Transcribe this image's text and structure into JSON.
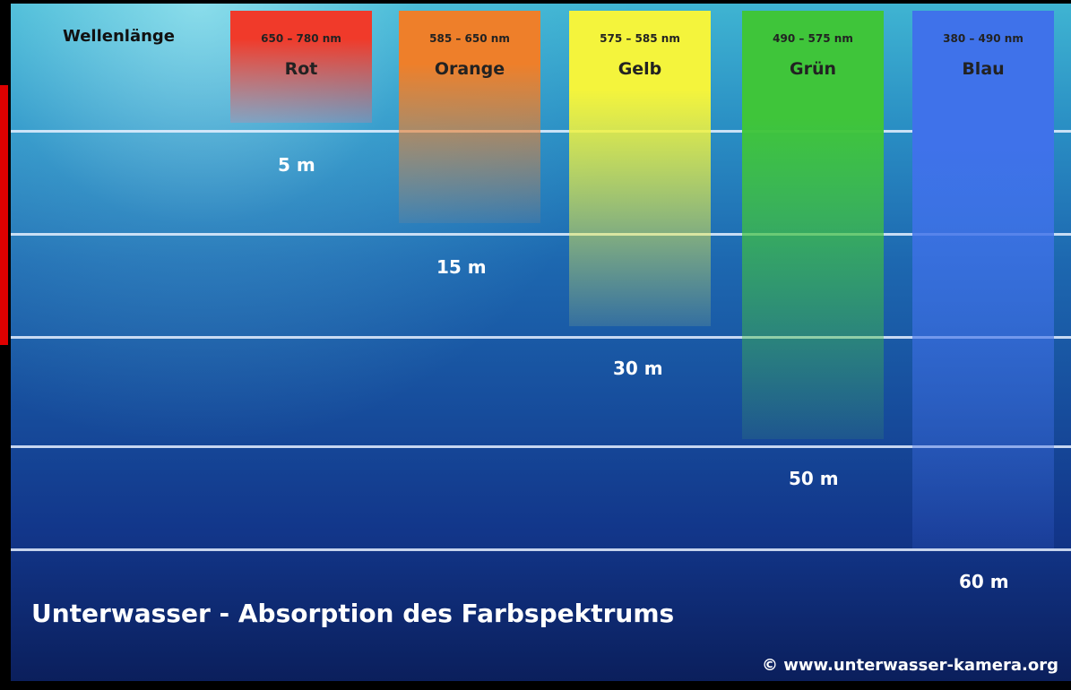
{
  "header": {
    "label": "Wellenlänge"
  },
  "columns": [
    {
      "range": "650 – 780 nm",
      "name": "Rot"
    },
    {
      "range": "585 – 650 nm",
      "name": "Orange"
    },
    {
      "range": "575 – 585 nm",
      "name": "Gelb"
    },
    {
      "range": "490 – 575 nm",
      "name": "Grün"
    },
    {
      "range": "380 – 490 nm",
      "name": "Blau"
    }
  ],
  "depths": [
    "5 m",
    "15 m",
    "30 m",
    "50 m",
    "60 m"
  ],
  "title": "Unterwasser - Absorption des Farbspektrums",
  "credit": "© www.unterwasser-kamera.org"
}
